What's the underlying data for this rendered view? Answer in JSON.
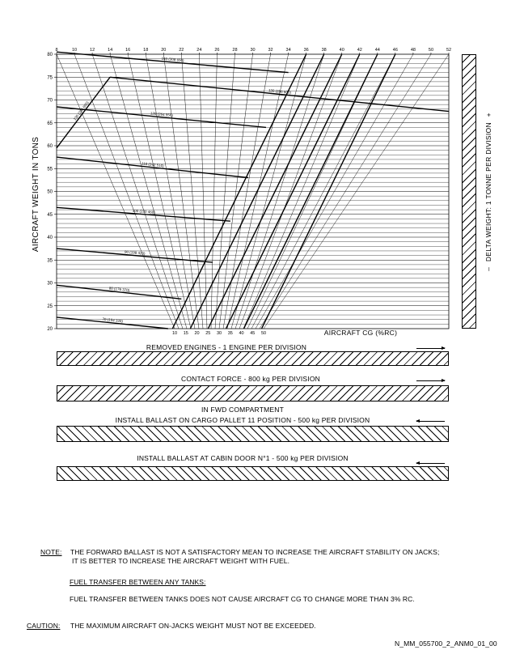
{
  "chart_data": {
    "type": "line",
    "title": "",
    "ylabel": "AIRCRAFT WEIGHT IN TONS",
    "xlabel": "AIRCRAFT CG (%RC)",
    "ylim": [
      20,
      80
    ],
    "yticks": [
      20,
      25,
      30,
      35,
      40,
      45,
      50,
      55,
      60,
      65,
      70,
      75,
      80
    ],
    "top_scale_ticks": [
      8,
      10,
      12,
      14,
      16,
      18,
      20,
      22,
      24,
      26,
      28,
      30,
      32,
      34,
      36,
      38,
      40,
      42,
      44,
      46,
      48,
      50,
      52
    ],
    "bottom_scale_ticks": [
      10,
      15,
      20,
      25,
      30,
      35,
      40,
      45,
      50
    ],
    "weight_limit_lines": [
      {
        "label": "70 (154 320)",
        "points": [
          [
            8,
            22.5
          ],
          [
            20.5,
            20
          ]
        ]
      },
      {
        "label": "80 (176 370)",
        "points": [
          [
            8,
            29.5
          ],
          [
            22,
            26.5
          ]
        ]
      },
      {
        "label": "90 (198 420)",
        "points": [
          [
            8,
            37.5
          ],
          [
            25.5,
            34.5
          ]
        ]
      },
      {
        "label": "100 (220 460)",
        "points": [
          [
            8,
            46.5
          ],
          [
            27.5,
            43.5
          ]
        ]
      },
      {
        "label": "110 (242 510)",
        "points": [
          [
            8,
            57.5
          ],
          [
            29.5,
            53
          ]
        ]
      },
      {
        "label": "120 (264 550)",
        "points": [
          [
            8,
            68.5
          ],
          [
            31.5,
            64
          ]
        ]
      },
      {
        "label": "130 (286 600)",
        "points": [
          [
            8,
            59.5
          ],
          [
            14,
            75
          ]
        ]
      },
      {
        "label": "130 (286 600)",
        "points": [
          [
            14,
            75
          ],
          [
            52,
            67.5
          ]
        ]
      },
      {
        "label": "140 (308 650)",
        "points": [
          [
            8,
            80.5
          ],
          [
            34,
            76
          ]
        ]
      }
    ],
    "delta_weight_label": "DELTA WEIGHT: 1 TONNE PER DIVISION",
    "delta_weight_sign_minus": "–",
    "delta_weight_sign_plus": "+"
  },
  "bars": [
    {
      "label": "REMOVED ENGINES - 1 ENGINE PER DIVISION",
      "direction": "right"
    },
    {
      "label": "CONTACT FORCE - 800 kg PER DIVISION",
      "direction": "right"
    },
    {
      "label": "INSTALL BALLAST ON CARGO PALLET 11 POSITION - 500 kg PER DIVISION",
      "label_top": "IN FWD COMPARTMENT",
      "direction": "left"
    },
    {
      "label": "INSTALL BALLAST AT CABIN DOOR N°1 - 500 kg PER DIVISION",
      "direction": "left"
    }
  ],
  "notes": {
    "note_label": "NOTE:",
    "note_line1": "THE FORWARD BALLAST IS NOT A SATISFACTORY MEAN TO INCREASE THE AIRCRAFT STABILITY ON JACKS;",
    "note_line2": "IT IS BETTER TO INCREASE THE AIRCRAFT WEIGHT WITH FUEL.",
    "fuel_heading": "FUEL TRANSFER BETWEEN ANY TANKS:",
    "fuel_text": "FUEL TRANSFER BETWEEN TANKS DOES NOT CAUSE AIRCRAFT CG TO CHANGE MORE THAN 3% RC.",
    "caution_label": "CAUTION:",
    "caution_text": "THE MAXIMUM AIRCRAFT ON-JACKS WEIGHT MUST NOT BE EXCEEDED."
  },
  "footer_id": "N_MM_055700_2_ANM0_01_00"
}
